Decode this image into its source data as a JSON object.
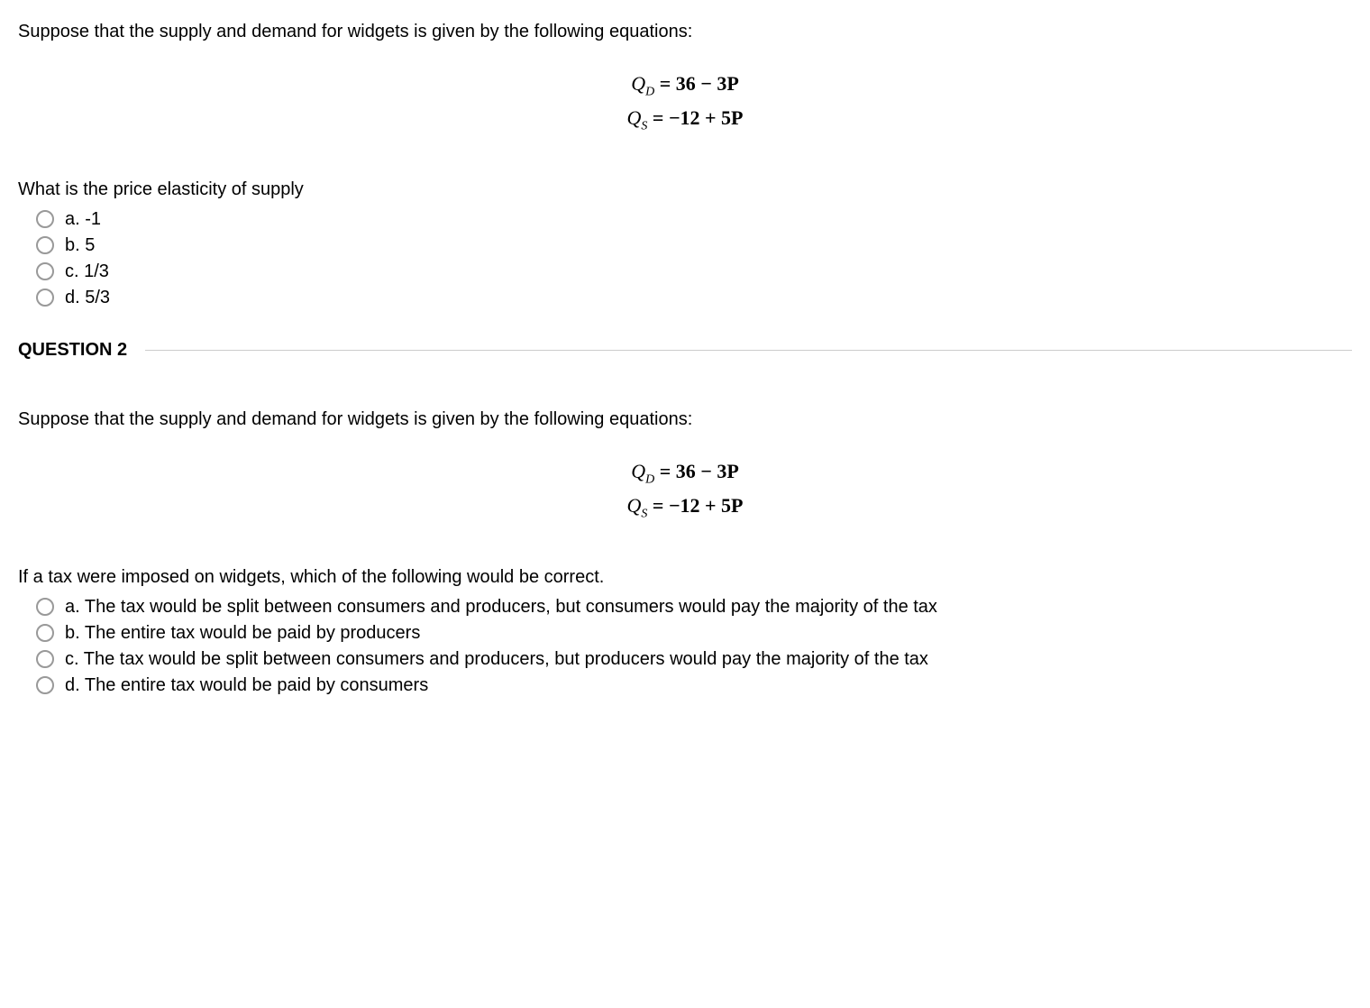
{
  "question1": {
    "prompt": "Suppose that the supply and demand for widgets is given by the following equations:",
    "equations": {
      "demand_lhs": "Q",
      "demand_sub": "D",
      "demand_rhs": " = 36 − 3P",
      "supply_lhs": "Q",
      "supply_sub": "S",
      "supply_rhs": " = −12 + 5P"
    },
    "sub_question": "What is the price elasticity of supply",
    "options": [
      {
        "label": "a. -1"
      },
      {
        "label": "b. 5"
      },
      {
        "label": "c.  1/3"
      },
      {
        "label": "d. 5/3"
      }
    ]
  },
  "divider": {
    "title": "QUESTION 2"
  },
  "question2": {
    "prompt": "Suppose that the supply and demand for widgets is given by the following equations:",
    "equations": {
      "demand_lhs": "Q",
      "demand_sub": "D",
      "demand_rhs": " = 36 − 3P",
      "supply_lhs": "Q",
      "supply_sub": "S",
      "supply_rhs": " = −12 + 5P"
    },
    "sub_question": "If a tax were imposed on widgets, which of the following would be correct.",
    "options": [
      {
        "label": "a. The tax would be split between consumers and producers, but consumers would pay the majority of the tax"
      },
      {
        "label": "b. The entire tax would be paid by producers"
      },
      {
        "label": "c. The tax would be split between consumers and producers, but producers would pay the majority of the tax"
      },
      {
        "label": "d. The entire tax would be paid by consumers"
      }
    ]
  }
}
